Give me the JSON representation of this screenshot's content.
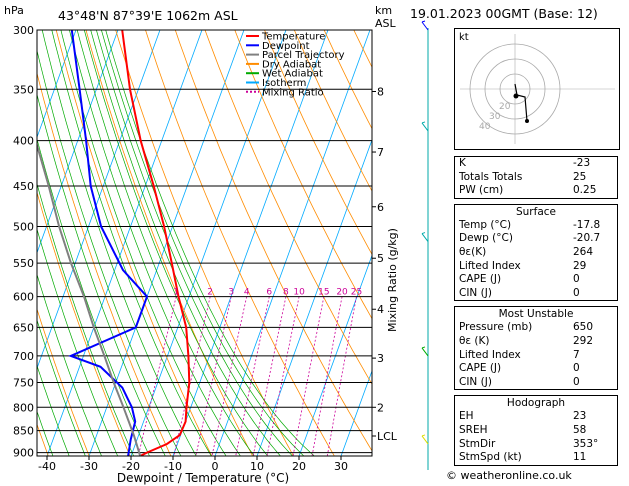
{
  "header": {
    "units": "hPa",
    "location": "43°48'N 87°39'E 1062m ASL",
    "km_label": "km",
    "asl_label": "ASL",
    "datetime": "19.01.2023 00GMT (Base: 12)"
  },
  "legend": [
    {
      "label": "Temperature",
      "color": "#ff0000",
      "dash": ""
    },
    {
      "label": "Dewpoint",
      "color": "#0000ff",
      "dash": ""
    },
    {
      "label": "Parcel Trajectory",
      "color": "#808080",
      "dash": ""
    },
    {
      "label": "Dry Adiabat",
      "color": "#ff8c00",
      "dash": ""
    },
    {
      "label": "Wet Adiabat",
      "color": "#00aa00",
      "dash": ""
    },
    {
      "label": "Isotherm",
      "color": "#00aaff",
      "dash": ""
    },
    {
      "label": "Mixing Ratio",
      "color": "#cc0099",
      "dash": "2,2"
    }
  ],
  "chart_data": {
    "type": "line",
    "xlabel": "Dewpoint / Temperature (°C)",
    "ylabel_right": "Mixing Ratio (g/kg)",
    "xlim": [
      -42,
      38
    ],
    "x_ticks": [
      -40,
      -30,
      -20,
      -10,
      0,
      10,
      20,
      30
    ],
    "y_pressure_levels": [
      300,
      350,
      400,
      450,
      500,
      550,
      600,
      650,
      700,
      750,
      800,
      850,
      900
    ],
    "height_km_ticks": [
      {
        "label": "8",
        "p": 352
      },
      {
        "label": "7",
        "p": 412
      },
      {
        "label": "6",
        "p": 475
      },
      {
        "label": "5",
        "p": 543
      },
      {
        "label": "4",
        "p": 620
      },
      {
        "label": "3",
        "p": 704
      },
      {
        "label": "2",
        "p": 800
      },
      {
        "label": "LCL",
        "p": 862
      }
    ],
    "mixing_ratio_labels": [
      "1",
      "2",
      "3",
      "4",
      "6",
      "8",
      "10",
      "15",
      "20",
      "25"
    ],
    "series": [
      {
        "name": "Temperature",
        "color": "#ff0000",
        "points": [
          [
            908,
            -17.8
          ],
          [
            900,
            -16.5
          ],
          [
            880,
            -12.5
          ],
          [
            860,
            -10.2
          ],
          [
            830,
            -10
          ],
          [
            800,
            -11
          ],
          [
            750,
            -12.5
          ],
          [
            700,
            -15
          ],
          [
            650,
            -18
          ],
          [
            600,
            -22.5
          ],
          [
            550,
            -27
          ],
          [
            500,
            -32
          ],
          [
            450,
            -38
          ],
          [
            400,
            -45
          ],
          [
            350,
            -52
          ],
          [
            300,
            -59
          ]
        ]
      },
      {
        "name": "Dewpoint",
        "color": "#0000ff",
        "points": [
          [
            908,
            -20.7
          ],
          [
            870,
            -21.5
          ],
          [
            830,
            -22
          ],
          [
            800,
            -24
          ],
          [
            760,
            -28
          ],
          [
            720,
            -35
          ],
          [
            700,
            -43
          ],
          [
            650,
            -30
          ],
          [
            600,
            -30
          ],
          [
            560,
            -38
          ],
          [
            500,
            -47
          ],
          [
            450,
            -53
          ],
          [
            400,
            -58
          ],
          [
            350,
            -64
          ],
          [
            300,
            -71
          ]
        ]
      },
      {
        "name": "Parcel Trajectory",
        "color": "#808080",
        "points": [
          [
            908,
            -17.8
          ],
          [
            862,
            -21
          ],
          [
            800,
            -26
          ],
          [
            750,
            -30.5
          ],
          [
            700,
            -35
          ],
          [
            650,
            -40
          ],
          [
            600,
            -45
          ],
          [
            550,
            -51
          ],
          [
            500,
            -57
          ],
          [
            450,
            -63
          ],
          [
            400,
            -70
          ]
        ]
      }
    ]
  },
  "hodograph": {
    "label": "kt",
    "ring_labels": [
      "40",
      "30",
      "20"
    ]
  },
  "indices": [
    {
      "label": "K",
      "value": "-23"
    },
    {
      "label": "Totals Totals",
      "value": "25"
    },
    {
      "label": "PW (cm)",
      "value": "0.25"
    }
  ],
  "surface": {
    "title": "Surface",
    "rows": [
      {
        "label": "Temp (°C)",
        "value": "-17.8"
      },
      {
        "label": "Dewp (°C)",
        "value": "-20.7"
      },
      {
        "label": "θε(K)",
        "value": "264"
      },
      {
        "label": "Lifted Index",
        "value": "29"
      },
      {
        "label": "CAPE (J)",
        "value": "0"
      },
      {
        "label": "CIN (J)",
        "value": "0"
      }
    ]
  },
  "most_unstable": {
    "title": "Most Unstable",
    "rows": [
      {
        "label": "Pressure (mb)",
        "value": "650"
      },
      {
        "label": "θε (K)",
        "value": "292"
      },
      {
        "label": "Lifted Index",
        "value": "7"
      },
      {
        "label": "CAPE (J)",
        "value": "0"
      },
      {
        "label": "CIN (J)",
        "value": "0"
      }
    ]
  },
  "hodograph_table": {
    "title": "Hodograph",
    "rows": [
      {
        "label": "EH",
        "value": "23"
      },
      {
        "label": "SREH",
        "value": "58"
      },
      {
        "label": "StmDir",
        "value": "353°"
      },
      {
        "label": "StmSpd (kt)",
        "value": "11"
      }
    ]
  },
  "footer": "© weatheronline.co.uk"
}
